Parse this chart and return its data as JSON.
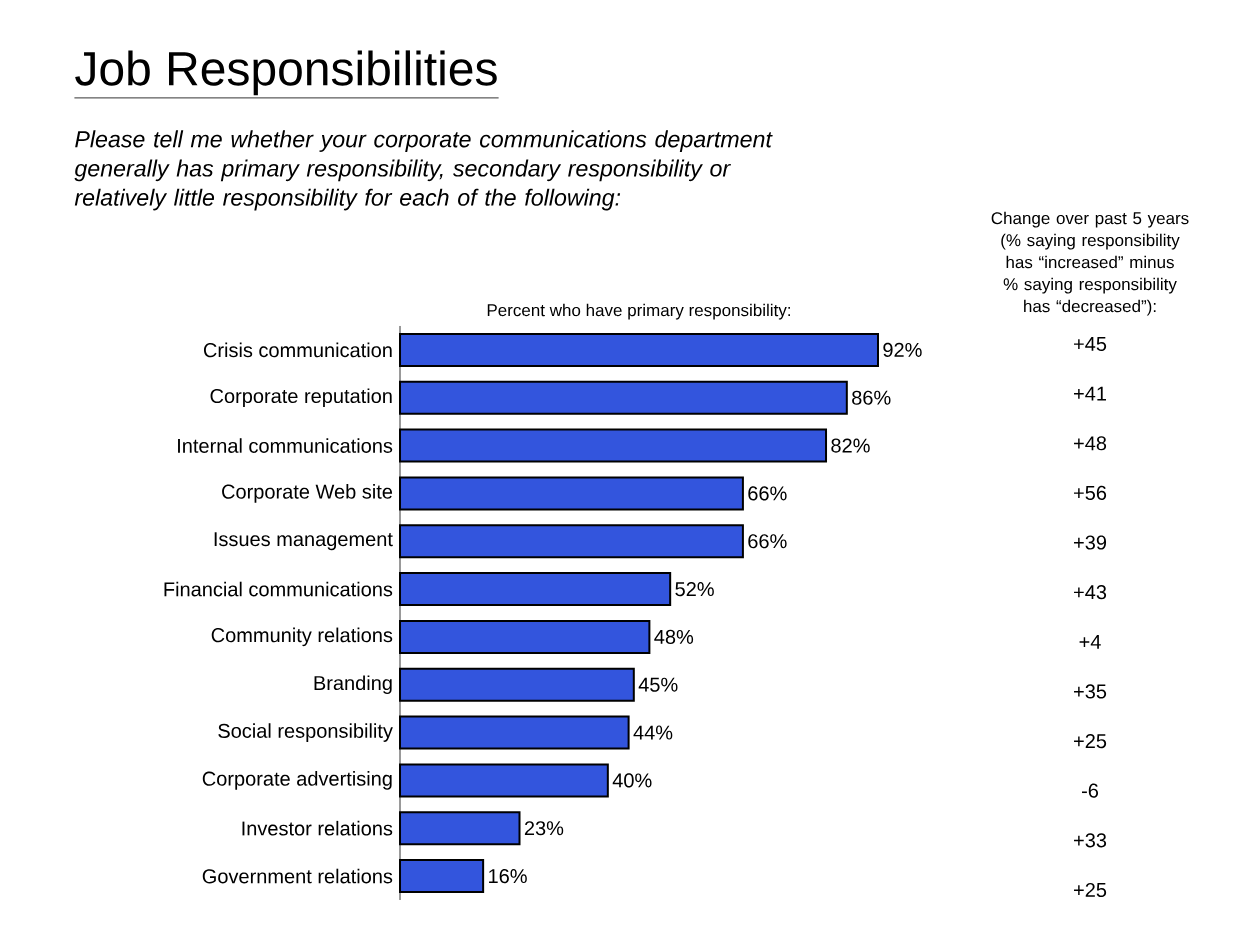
{
  "chart_data": [
    {
      "type": "bar",
      "orientation": "horizontal",
      "title": "Job Responsibilities",
      "subtitle": "Please tell me whether your corporate communications department generally has primary responsibility, secondary responsibility or relatively little responsibility for each of the following:",
      "xlabel": "Percent who have primary responsibility:",
      "categories": [
        "Crisis communication",
        "Corporate reputation",
        "Internal communications",
        "Corporate Web site",
        "Issues management",
        "Financial communications",
        "Community relations",
        "Branding",
        "Social responsibility",
        "Corporate advertising",
        "Investor relations",
        "Government relations"
      ],
      "values": [
        92,
        86,
        82,
        66,
        66,
        52,
        48,
        45,
        44,
        40,
        23,
        16
      ],
      "value_labels": [
        "92%",
        "86%",
        "82%",
        "66%",
        "66%",
        "52%",
        "48%",
        "45%",
        "44%",
        "40%",
        "23%",
        "16%"
      ],
      "color": "#3355dd",
      "tick_labels": "y"
    },
    {
      "type": "other",
      "title": "Change over past 5 years (% saying responsibility has “increased” minus % saying responsibility has “decreased”):",
      "values": [
        45,
        41,
        48,
        56,
        39,
        43,
        4,
        35,
        25,
        -6,
        33,
        25
      ],
      "value_labels": [
        "+45",
        "+41",
        "+48",
        "+56",
        "+39",
        "+43",
        "+4",
        "+35",
        "+25",
        "-6",
        "+33",
        "+25"
      ]
    }
  ]
}
